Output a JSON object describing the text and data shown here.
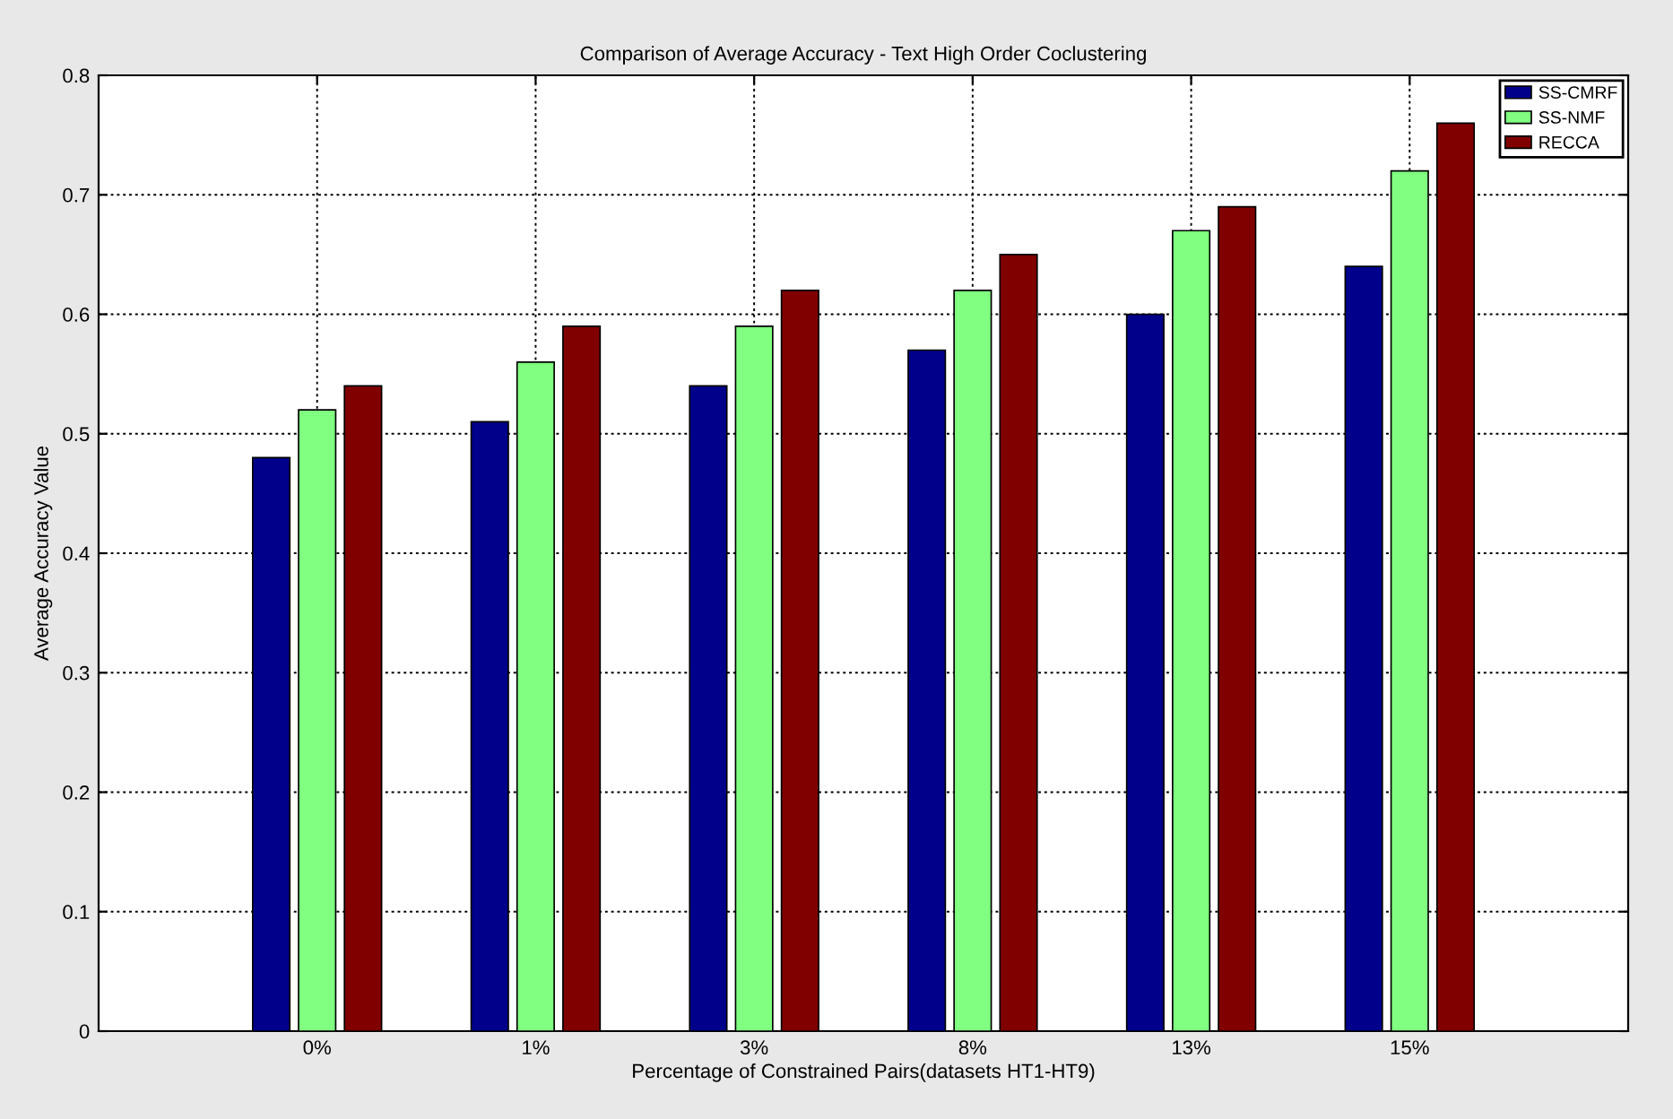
{
  "chart_data": {
    "type": "bar",
    "title": "Comparison of Average Accuracy - Text High Order Coclustering",
    "xlabel": "Percentage of Constrained Pairs(datasets HT1-HT9)",
    "ylabel": "Average Accuracy Value",
    "categories": [
      "0%",
      "1%",
      "3%",
      "8%",
      "13%",
      "15%"
    ],
    "series": [
      {
        "name": "SS-CMRF",
        "color": "#00008b",
        "values": [
          0.48,
          0.51,
          0.54,
          0.57,
          0.6,
          0.64
        ]
      },
      {
        "name": "SS-NMF",
        "color": "#80ff80",
        "values": [
          0.52,
          0.56,
          0.59,
          0.62,
          0.67,
          0.72
        ]
      },
      {
        "name": "RECCA",
        "color": "#800000",
        "values": [
          0.54,
          0.59,
          0.62,
          0.65,
          0.69,
          0.76
        ]
      }
    ],
    "ylim": [
      0,
      0.8
    ],
    "yticks": [
      0,
      0.1,
      0.2,
      0.3,
      0.4,
      0.5,
      0.6,
      0.7,
      0.8
    ],
    "grid": true,
    "legend": "top right"
  }
}
